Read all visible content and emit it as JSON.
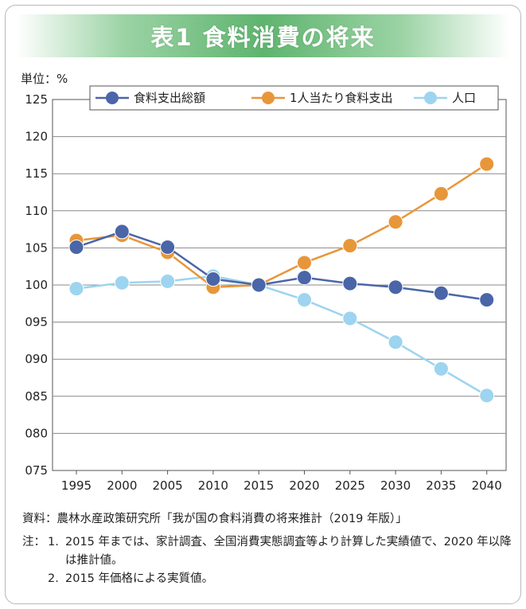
{
  "title": "表1 食料消費の将来",
  "unit_label": "単位：%",
  "chart_data": {
    "type": "line",
    "x": [
      "1995",
      "2000",
      "2005",
      "2010",
      "2015",
      "2020",
      "2025",
      "2030",
      "2035",
      "2040"
    ],
    "ylim": [
      75,
      125
    ],
    "y_ticks": [
      "075",
      "080",
      "085",
      "090",
      "095",
      "100",
      "105",
      "110",
      "115",
      "120",
      "125"
    ],
    "grid": true,
    "legend_position": "top",
    "series": [
      {
        "name": "食料支出総額",
        "color": "#4a66a8",
        "values": [
          105.1,
          107.2,
          105.1,
          100.8,
          100.0,
          101.0,
          100.2,
          99.7,
          98.9,
          98.0
        ]
      },
      {
        "name": "1人当たり食料支出",
        "color": "#e8963a",
        "values": [
          106.0,
          106.7,
          104.4,
          99.7,
          100.0,
          103.0,
          105.3,
          108.5,
          112.3,
          116.3
        ]
      },
      {
        "name": "人口",
        "color": "#9dd4ef",
        "values": [
          99.5,
          100.3,
          100.5,
          101.2,
          100.0,
          98.0,
          95.5,
          92.3,
          88.7,
          85.1
        ]
      }
    ]
  },
  "source": "資料：農林水産政策研究所「我が国の食料消費の将来推計（2019 年版）」",
  "notes": {
    "head": "注：",
    "items": [
      {
        "num": "1.",
        "text": "2015 年までは、家計調査、全国消費実態調査等より計算した実績値で、2020 年以降は推計値。"
      },
      {
        "num": "2.",
        "text": "2015 年価格による実質値。"
      }
    ]
  }
}
